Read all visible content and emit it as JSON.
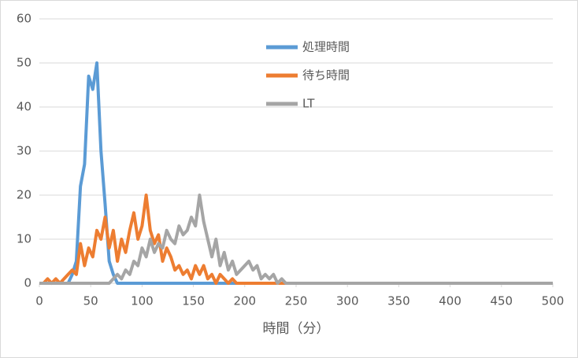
{
  "chart_data": {
    "type": "line",
    "x_label": "時間（分）",
    "x": [
      0,
      4,
      8,
      12,
      16,
      20,
      24,
      28,
      32,
      36,
      40,
      44,
      48,
      52,
      56,
      60,
      64,
      68,
      72,
      76,
      80,
      84,
      88,
      92,
      96,
      100,
      104,
      108,
      112,
      116,
      120,
      124,
      128,
      132,
      136,
      140,
      144,
      148,
      152,
      156,
      160,
      164,
      168,
      172,
      176,
      180,
      184,
      188,
      192,
      196,
      200,
      204,
      208,
      212,
      216,
      220,
      224,
      228,
      232,
      236,
      240,
      500
    ],
    "series": [
      {
        "name": "処理時間",
        "color": "#5b9bd5",
        "values": [
          0,
          0,
          0,
          0,
          0,
          0,
          0,
          0,
          2,
          5,
          22,
          27,
          47,
          44,
          50,
          30,
          18,
          5,
          2,
          0,
          0,
          0,
          0,
          0,
          0,
          0,
          0,
          0,
          0,
          0,
          0,
          0,
          0,
          0,
          0,
          0,
          0,
          0,
          0,
          0,
          0,
          0,
          0,
          0,
          0,
          0,
          0,
          0,
          0,
          0,
          0,
          0,
          0,
          0,
          0,
          0,
          0,
          0,
          0,
          0,
          0,
          0
        ]
      },
      {
        "name": "待ち時間",
        "color": "#ed7d31",
        "values": [
          0,
          0,
          1,
          0,
          1,
          0,
          1,
          2,
          3,
          2,
          9,
          4,
          8,
          6,
          12,
          10,
          15,
          8,
          12,
          5,
          10,
          7,
          12,
          16,
          10,
          13,
          20,
          12,
          9,
          11,
          5,
          8,
          6,
          3,
          4,
          2,
          3,
          1,
          4,
          2,
          4,
          1,
          2,
          0,
          2,
          1,
          0,
          1,
          0,
          0,
          0,
          0,
          0,
          0,
          0,
          0,
          0,
          0,
          0,
          0,
          0,
          0
        ]
      },
      {
        "name": "LT",
        "color": "#a5a5a5",
        "values": [
          0,
          0,
          0,
          0,
          0,
          0,
          0,
          0,
          0,
          0,
          0,
          0,
          0,
          0,
          0,
          0,
          0,
          0,
          1,
          2,
          1,
          3,
          2,
          5,
          4,
          8,
          6,
          10,
          7,
          9,
          8,
          12,
          10,
          9,
          13,
          11,
          12,
          15,
          13,
          20,
          14,
          10,
          6,
          10,
          4,
          7,
          3,
          5,
          2,
          3,
          4,
          5,
          3,
          4,
          1,
          2,
          1,
          2,
          0,
          1,
          0,
          0
        ]
      }
    ],
    "xlim": [
      0,
      500
    ],
    "xticks": [
      0,
      50,
      100,
      150,
      200,
      250,
      300,
      350,
      400,
      450,
      500
    ],
    "ylim": [
      0,
      60
    ],
    "yticks": [
      0,
      10,
      20,
      30,
      40,
      50,
      60
    ],
    "grid": true
  }
}
